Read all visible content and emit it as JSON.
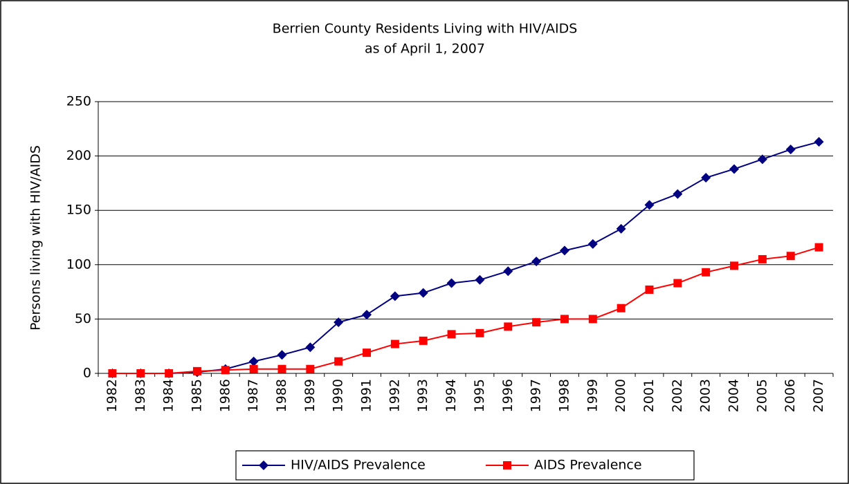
{
  "chart_data": {
    "type": "line",
    "title": "Berrien County Residents Living with HIV/AIDS",
    "subtitle": "as of April 1, 2007",
    "y_label": "Persons living with HIV/AIDS",
    "categories": [
      "1982",
      "1983",
      "1984",
      "1985",
      "1986",
      "1987",
      "1988",
      "1989",
      "1990",
      "1991",
      "1992",
      "1993",
      "1994",
      "1995",
      "1996",
      "1997",
      "1998",
      "1999",
      "2000",
      "2001",
      "2002",
      "2003",
      "2004",
      "2005",
      "2006",
      "2007"
    ],
    "series": [
      {
        "name": "HIV/AIDS Prevalence",
        "color": "#000080",
        "marker": "diamond",
        "values": [
          0,
          0,
          0,
          1,
          4,
          11,
          17,
          24,
          47,
          54,
          71,
          74,
          83,
          86,
          94,
          103,
          113,
          119,
          133,
          155,
          165,
          180,
          188,
          197,
          206,
          213
        ]
      },
      {
        "name": "AIDS Prevalence",
        "color": "#ff0000",
        "marker": "square",
        "values": [
          0,
          0,
          0,
          2,
          3,
          4,
          4,
          4,
          11,
          19,
          27,
          30,
          36,
          37,
          43,
          47,
          50,
          50,
          60,
          77,
          83,
          93,
          99,
          105,
          108,
          116
        ]
      }
    ],
    "ylim": [
      0,
      250
    ],
    "yticks": [
      0,
      50,
      100,
      150,
      200,
      250
    ],
    "grid": true,
    "legend": "bottom"
  }
}
